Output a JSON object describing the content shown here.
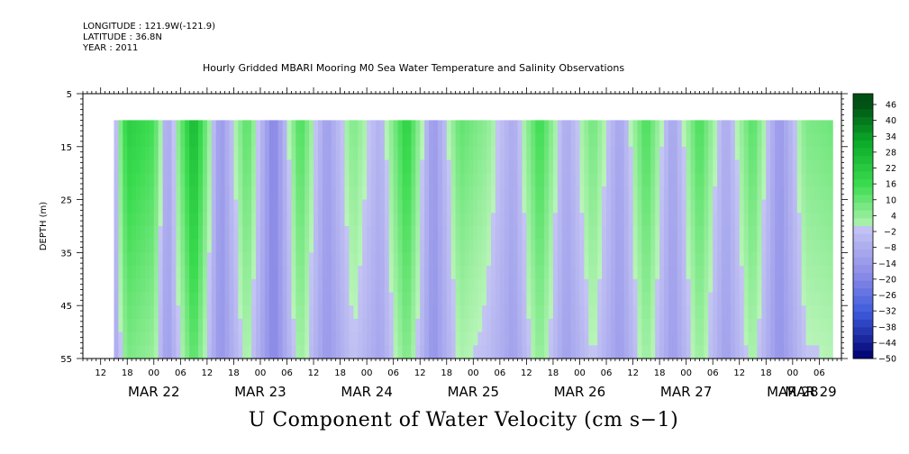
{
  "header": {
    "longitude": "LONGITUDE : 121.9W(-121.9)",
    "latitude": "LATITUDE : 36.8N",
    "year": "YEAR : 2011"
  },
  "chart_data": {
    "type": "heatmap",
    "title": "Hourly Gridded MBARI Mooring M0 Sea Water Temperature and Salinity Observations",
    "xlabel": "U Component of Water Velocity (cm s−1)",
    "ylabel": "DEPTH (m)",
    "x_hour_ticks": [
      "12",
      "18",
      "00",
      "06",
      "12",
      "18",
      "00",
      "06",
      "12",
      "18",
      "00",
      "06",
      "12",
      "18",
      "00",
      "06",
      "12",
      "18",
      "00",
      "06",
      "12",
      "18",
      "00",
      "06",
      "12",
      "18",
      "00",
      "06"
    ],
    "x_date_labels": [
      "MAR 22",
      "MAR 23",
      "MAR 24",
      "MAR 25",
      "MAR 26",
      "MAR 27",
      "MAR 28",
      "MAR 29"
    ],
    "time_range_hours": [
      "2011-03-22 08:00",
      "2011-03-29 11:00"
    ],
    "data_time_range": [
      "2011-03-22 15:00",
      "2011-03-29 09:00"
    ],
    "y_ticks": [
      "5",
      "15",
      "25",
      "35",
      "45",
      "55"
    ],
    "ylim": [
      5,
      55
    ],
    "data_depth_range": [
      10,
      55
    ],
    "colorbar": {
      "labels": [
        "46",
        "40",
        "34",
        "28",
        "22",
        "16",
        "10",
        "4",
        "−2",
        "−8",
        "−14",
        "−20",
        "−26",
        "−32",
        "−38",
        "−44",
        "−50"
      ],
      "range": [
        -50,
        52
      ],
      "colors_negative": "blue",
      "colors_positive": "green"
    },
    "description_columns_u": [
      {
        "day": "MAR 22",
        "hour": "15",
        "u": -6
      },
      {
        "day": "MAR 22",
        "hour": "18",
        "u": 22
      },
      {
        "day": "MAR 23",
        "hour": "00",
        "u": 16
      },
      {
        "day": "MAR 23",
        "hour": "03",
        "u": -10
      },
      {
        "day": "MAR 23",
        "hour": "09",
        "u": 30
      },
      {
        "day": "MAR 23",
        "hour": "15",
        "u": -14
      },
      {
        "day": "MAR 23",
        "hour": "21",
        "u": 14
      },
      {
        "day": "MAR 24",
        "hour": "03",
        "u": -20
      },
      {
        "day": "MAR 24",
        "hour": "09",
        "u": 16
      },
      {
        "day": "MAR 24",
        "hour": "15",
        "u": -12
      },
      {
        "day": "MAR 24",
        "hour": "21",
        "u": 8
      },
      {
        "day": "MAR 25",
        "hour": "03",
        "u": -6
      },
      {
        "day": "MAR 25",
        "hour": "09",
        "u": 22
      },
      {
        "day": "MAR 25",
        "hour": "15",
        "u": -14
      },
      {
        "day": "MAR 25",
        "hour": "21",
        "u": 12
      },
      {
        "day": "MAR 26",
        "hour": "03",
        "u": 6
      },
      {
        "day": "MAR 26",
        "hour": "09",
        "u": -8
      },
      {
        "day": "MAR 26",
        "hour": "15",
        "u": 18
      },
      {
        "day": "MAR 26",
        "hour": "21",
        "u": -8
      },
      {
        "day": "MAR 27",
        "hour": "03",
        "u": 10
      },
      {
        "day": "MAR 27",
        "hour": "09",
        "u": -10
      },
      {
        "day": "MAR 27",
        "hour": "15",
        "u": 16
      },
      {
        "day": "MAR 27",
        "hour": "21",
        "u": -10
      },
      {
        "day": "MAR 28",
        "hour": "03",
        "u": 16
      },
      {
        "day": "MAR 28",
        "hour": "09",
        "u": -8
      },
      {
        "day": "MAR 28",
        "hour": "15",
        "u": 14
      },
      {
        "day": "MAR 28",
        "hour": "21",
        "u": -14
      },
      {
        "day": "MAR 29",
        "hour": "03",
        "u": 8
      },
      {
        "day": "MAR 29",
        "hour": "09",
        "u": 10
      }
    ]
  }
}
